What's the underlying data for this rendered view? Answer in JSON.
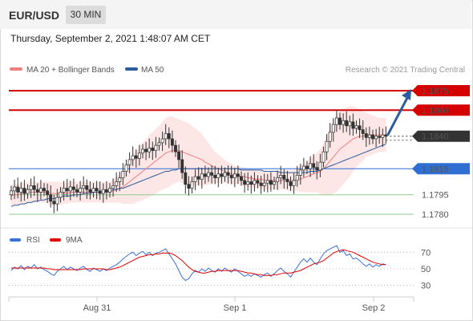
{
  "header": {
    "symbol": "EUR/USD",
    "timeframe": "30 MIN"
  },
  "datetime": "Thursday, September 2, 2021 1:48:07 AM CET",
  "legend": {
    "bollinger": {
      "label": "MA 20 + Bollinger Bands",
      "color": "#f08080"
    },
    "ma50": {
      "label": "MA 50",
      "color": "#2d5c9e"
    }
  },
  "copyright": "Research © 2021 Trading Central",
  "colors": {
    "resistance": "#d40000",
    "pivot": "#333333",
    "support_main": "#2f6fd4",
    "support_minor": "#8fce8f",
    "up": "#ffffff",
    "down": "#333333"
  },
  "chart_data": [
    {
      "type": "candlestick",
      "x_labels": [
        "Aug 31",
        "Sep 1",
        "Sep 2"
      ],
      "ylim": [
        1.1772,
        1.1883
      ],
      "levels": [
        {
          "value": 1.1875,
          "label": "1.1875",
          "kind": "resistance"
        },
        {
          "value": 1.186,
          "label": "1.1860",
          "kind": "resistance"
        },
        {
          "value": 1.184,
          "label": "1.1840",
          "kind": "pivot"
        },
        {
          "value": 1.1815,
          "label": "1.1815",
          "kind": "support"
        },
        {
          "value": 1.1795,
          "label": "1.1795",
          "kind": "support-minor"
        },
        {
          "value": 1.178,
          "label": "1.1780",
          "kind": "support-minor"
        }
      ],
      "close": [
        1.1798,
        1.1801,
        1.1797,
        1.18,
        1.1796,
        1.1799,
        1.1802,
        1.1799,
        1.1797,
        1.18,
        1.1798,
        1.1795,
        1.179,
        1.1788,
        1.1793,
        1.1797,
        1.18,
        1.1798,
        1.1801,
        1.1799,
        1.1797,
        1.18,
        1.1802,
        1.1799,
        1.1797,
        1.18,
        1.1798,
        1.1796,
        1.1799,
        1.1797,
        1.18,
        1.1802,
        1.1805,
        1.1808,
        1.1813,
        1.1818,
        1.1822,
        1.1825,
        1.1823,
        1.1827,
        1.183,
        1.1828,
        1.1831,
        1.1829,
        1.1833,
        1.1835,
        1.1838,
        1.1842,
        1.1838,
        1.1833,
        1.1828,
        1.1822,
        1.1812,
        1.1803,
        1.18,
        1.1805,
        1.1809,
        1.1807,
        1.1811,
        1.1809,
        1.1812,
        1.181,
        1.1808,
        1.1811,
        1.1809,
        1.1812,
        1.181,
        1.1808,
        1.1811,
        1.1809,
        1.1806,
        1.1803,
        1.1805,
        1.1803,
        1.1806,
        1.1804,
        1.1802,
        1.1804,
        1.1806,
        1.1803,
        1.1805,
        1.1808,
        1.181,
        1.1807,
        1.1805,
        1.1802,
        1.1806,
        1.181,
        1.1814,
        1.1817,
        1.1815,
        1.1819,
        1.1816,
        1.1814,
        1.182,
        1.1828,
        1.1836,
        1.1843,
        1.1849,
        1.1854,
        1.1849,
        1.1852,
        1.1848,
        1.1851,
        1.1846,
        1.1848,
        1.1845,
        1.1842,
        1.1839,
        1.1841,
        1.1838,
        1.184,
        1.1839,
        1.1841,
        1.184
      ],
      "ma20": [
        1.1794,
        1.1795,
        1.1795,
        1.1796,
        1.1796,
        1.1797,
        1.1797,
        1.1797,
        1.1797,
        1.1797,
        1.1797,
        1.1797,
        1.1796,
        1.1796,
        1.1796,
        1.1796,
        1.1796,
        1.1796,
        1.1797,
        1.1797,
        1.1797,
        1.1797,
        1.1797,
        1.1797,
        1.1797,
        1.1797,
        1.1797,
        1.1797,
        1.1797,
        1.1797,
        1.1797,
        1.1798,
        1.1799,
        1.18,
        1.1801,
        1.1803,
        1.1805,
        1.1807,
        1.1809,
        1.1811,
        1.1813,
        1.1815,
        1.1817,
        1.1819,
        1.1821,
        1.1823,
        1.1825,
        1.1827,
        1.1828,
        1.1829,
        1.1829,
        1.1829,
        1.1828,
        1.1827,
        1.1826,
        1.1825,
        1.1824,
        1.1823,
        1.1822,
        1.182,
        1.1819,
        1.1817,
        1.1816,
        1.1815,
        1.1814,
        1.1813,
        1.1812,
        1.1811,
        1.181,
        1.181,
        1.1809,
        1.1809,
        1.1808,
        1.1808,
        1.1807,
        1.1807,
        1.1807,
        1.1806,
        1.1806,
        1.1806,
        1.1806,
        1.1806,
        1.1806,
        1.1806,
        1.1806,
        1.1806,
        1.1806,
        1.1807,
        1.1807,
        1.1808,
        1.1809,
        1.181,
        1.1811,
        1.1812,
        1.1813,
        1.1815,
        1.1818,
        1.1821,
        1.1824,
        1.1827,
        1.183,
        1.1832,
        1.1834,
        1.1836,
        1.1838,
        1.1839,
        1.184,
        1.184,
        1.1841,
        1.1841,
        1.1841,
        1.1841,
        1.1841,
        1.1841,
        1.1841
      ],
      "ma50": [
        1.1786,
        1.1787,
        1.1787,
        1.1788,
        1.1788,
        1.1789,
        1.1789,
        1.179,
        1.179,
        1.1791,
        1.1791,
        1.1792,
        1.1792,
        1.1792,
        1.1793,
        1.1793,
        1.1794,
        1.1794,
        1.1794,
        1.1795,
        1.1795,
        1.1795,
        1.1796,
        1.1796,
        1.1796,
        1.1797,
        1.1797,
        1.1797,
        1.1797,
        1.1798,
        1.1798,
        1.1799,
        1.1799,
        1.18,
        1.18,
        1.1801,
        1.1802,
        1.1803,
        1.1804,
        1.1805,
        1.1806,
        1.1807,
        1.1808,
        1.1809,
        1.181,
        1.1811,
        1.1812,
        1.1813,
        1.1813,
        1.1814,
        1.1814,
        1.1815,
        1.1815,
        1.1815,
        1.1815,
        1.1815,
        1.1815,
        1.1815,
        1.1815,
        1.1815,
        1.1815,
        1.1815,
        1.1815,
        1.1815,
        1.1815,
        1.1815,
        1.1815,
        1.1815,
        1.1815,
        1.1815,
        1.1814,
        1.1814,
        1.1814,
        1.1814,
        1.1814,
        1.1814,
        1.1814,
        1.1813,
        1.1813,
        1.1813,
        1.1813,
        1.1813,
        1.1812,
        1.1812,
        1.1812,
        1.1812,
        1.1812,
        1.1812,
        1.1812,
        1.1812,
        1.1812,
        1.1813,
        1.1813,
        1.1813,
        1.1814,
        1.1815,
        1.1816,
        1.1817,
        1.1818,
        1.1819,
        1.182,
        1.1821,
        1.1822,
        1.1823,
        1.1824,
        1.1825,
        1.1826,
        1.1827,
        1.1828,
        1.1829,
        1.183,
        1.1831,
        1.1832,
        1.1833,
        1.1834
      ],
      "bb_width": [
        0.0008,
        0.0008,
        0.0008,
        0.0008,
        0.0008,
        0.0008,
        0.0008,
        0.0008,
        0.0008,
        0.0008,
        0.0008,
        0.0008,
        0.0009,
        0.0009,
        0.0009,
        0.0009,
        0.0008,
        0.0008,
        0.0008,
        0.0008,
        0.0008,
        0.0008,
        0.0008,
        0.0008,
        0.0008,
        0.0008,
        0.0008,
        0.0008,
        0.0008,
        0.0008,
        0.0008,
        0.0009,
        0.001,
        0.0011,
        0.0013,
        0.0015,
        0.0017,
        0.0019,
        0.002,
        0.0021,
        0.0022,
        0.0023,
        0.0024,
        0.0024,
        0.0025,
        0.0025,
        0.0026,
        0.0027,
        0.0027,
        0.0026,
        0.0025,
        0.0024,
        0.0024,
        0.0024,
        0.0024,
        0.0023,
        0.0022,
        0.0021,
        0.002,
        0.0018,
        0.0016,
        0.0014,
        0.0012,
        0.0011,
        0.001,
        0.0009,
        0.0008,
        0.0008,
        0.0007,
        0.0007,
        0.0007,
        0.0007,
        0.0007,
        0.0007,
        0.0007,
        0.0007,
        0.0007,
        0.0007,
        0.0007,
        0.0007,
        0.0007,
        0.0007,
        0.0007,
        0.0007,
        0.0008,
        0.0008,
        0.0008,
        0.0009,
        0.001,
        0.0011,
        0.0012,
        0.0013,
        0.0014,
        0.0015,
        0.0017,
        0.002,
        0.0023,
        0.0026,
        0.0028,
        0.003,
        0.003,
        0.0029,
        0.0028,
        0.0027,
        0.0025,
        0.0023,
        0.0021,
        0.0019,
        0.0017,
        0.0016,
        0.0015,
        0.0014,
        0.0013,
        0.0013,
        0.0013
      ],
      "forecast": {
        "from": 1.184,
        "to": 1.1875
      }
    },
    {
      "type": "line",
      "legend": [
        {
          "name": "RSI",
          "color": "#3a6fd8"
        },
        {
          "name": "9MA",
          "color": "#e00000"
        }
      ],
      "ylim": [
        20,
        80
      ],
      "y_ticks": [
        "70",
        "50",
        "30"
      ],
      "rsi": [
        48,
        52,
        50,
        54,
        49,
        53,
        51,
        55,
        50,
        52,
        49,
        47,
        44,
        42,
        47,
        50,
        53,
        49,
        52,
        50,
        48,
        51,
        53,
        49,
        47,
        51,
        49,
        47,
        50,
        48,
        51,
        53,
        55,
        58,
        62,
        65,
        68,
        70,
        66,
        69,
        71,
        67,
        70,
        66,
        69,
        70,
        72,
        74,
        68,
        62,
        56,
        48,
        40,
        36,
        38,
        44,
        48,
        46,
        50,
        47,
        51,
        48,
        46,
        50,
        47,
        51,
        48,
        46,
        50,
        47,
        44,
        41,
        43,
        41,
        44,
        42,
        40,
        43,
        45,
        41,
        44,
        48,
        51,
        47,
        44,
        40,
        46,
        52,
        58,
        62,
        58,
        63,
        58,
        55,
        62,
        68,
        72,
        74,
        76,
        78,
        70,
        72,
        66,
        68,
        62,
        63,
        60,
        56,
        53,
        56,
        52,
        55,
        53,
        56,
        55
      ],
      "ma9": [
        51,
        51,
        51,
        51,
        51,
        51,
        51,
        51,
        51,
        51,
        51,
        50,
        50,
        49,
        49,
        49,
        49,
        49,
        49,
        49,
        49,
        49,
        50,
        50,
        50,
        50,
        50,
        50,
        50,
        49,
        49,
        50,
        51,
        52,
        54,
        56,
        58,
        60,
        62,
        64,
        65,
        66,
        67,
        67,
        68,
        68,
        69,
        69,
        69,
        68,
        66,
        63,
        60,
        56,
        52,
        49,
        47,
        46,
        45,
        45,
        46,
        47,
        47,
        48,
        48,
        48,
        48,
        48,
        48,
        48,
        47,
        46,
        45,
        45,
        44,
        43,
        43,
        42,
        42,
        42,
        43,
        43,
        44,
        45,
        45,
        45,
        46,
        47,
        48,
        50,
        52,
        54,
        56,
        57,
        58,
        60,
        63,
        66,
        69,
        71,
        72,
        73,
        72,
        71,
        70,
        68,
        66,
        64,
        62,
        60,
        58,
        57,
        56,
        55,
        55
      ]
    }
  ]
}
